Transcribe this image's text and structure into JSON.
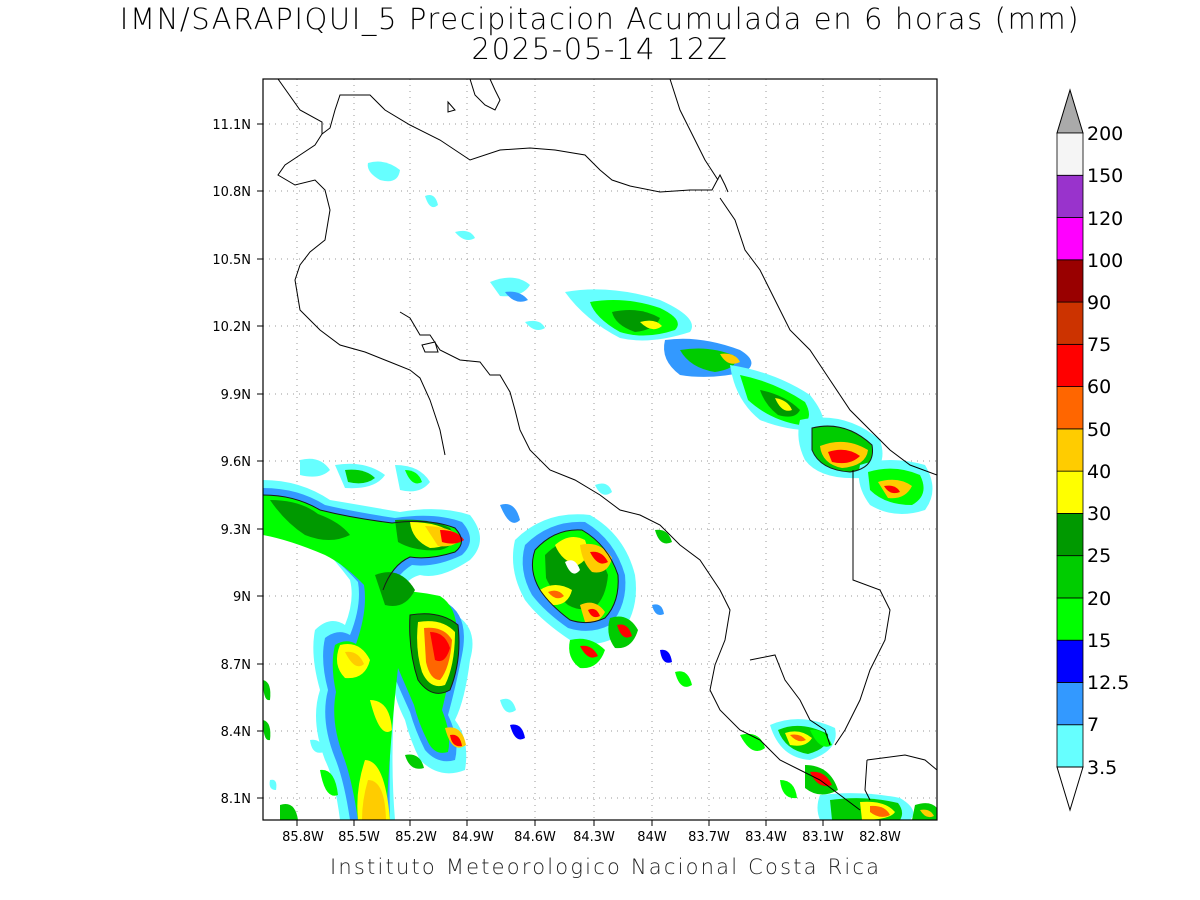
{
  "title": {
    "line1": "IMN/SARAPIQUI_5 Precipitacion Acumulada en 6 horas (mm)",
    "line2": "2025-05-14 12Z"
  },
  "footer": "Instituto Meteorologico Nacional Costa Rica",
  "map": {
    "lon_range": [
      -86.0,
      -83.0
    ],
    "lat_range": [
      8.0,
      11.3
    ],
    "x_ticks": [
      "85.8W",
      "85.5W",
      "85.2W",
      "84.9W",
      "84.6W",
      "84.3W",
      "84W",
      "83.7W",
      "83.4W",
      "83.1W",
      "82.8W"
    ],
    "y_ticks": [
      "11.1N",
      "10.8N",
      "10.5N",
      "10.2N",
      "9.9N",
      "9.6N",
      "9.3N",
      "9N",
      "8.7N",
      "8.4N",
      "8.1N"
    ],
    "grid": true
  },
  "colorbar": {
    "levels": [
      "3.5",
      "7",
      "12.5",
      "15",
      "20",
      "25",
      "30",
      "40",
      "50",
      "60",
      "75",
      "90",
      "100",
      "120",
      "150",
      "200"
    ],
    "colors": [
      "#66ffff",
      "#3399ff",
      "#0000ff",
      "#00ff00",
      "#00cc00",
      "#009900",
      "#ffff00",
      "#ffcc00",
      "#ff6600",
      "#ff0000",
      "#cc3300",
      "#990000",
      "#ff00ff",
      "#9933cc",
      "#f5f5f5"
    ],
    "over_color": "#aaaaaa",
    "under_color": "#ffffff"
  }
}
